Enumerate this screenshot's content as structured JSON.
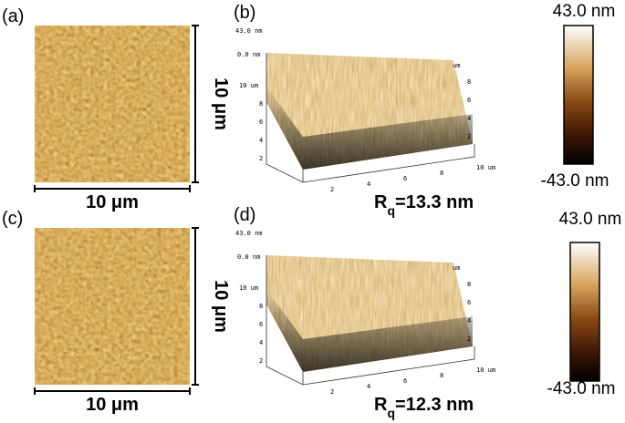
{
  "panels": [
    {
      "label": "(a)",
      "scale_x": "10 μm",
      "scale_y": "10 μm"
    },
    {
      "label": "(b)",
      "z_top": "43.0 nm",
      "z_zero": "0.0 nm",
      "left_ticks": [
        "10 um",
        "8",
        "6",
        "4",
        "2"
      ],
      "right_ticks": [
        "um",
        "8",
        "6",
        "4",
        "2"
      ],
      "bottom_ticks": [
        "2",
        "4",
        "6",
        "8",
        "10 um"
      ],
      "roughness": {
        "symbol": "R",
        "subscript": "q",
        "value_text": "=13.3 nm"
      },
      "colorbar": {
        "max": "43.0 nm",
        "min": "-43.0 nm"
      }
    },
    {
      "label": "(c)",
      "scale_x": "10 μm",
      "scale_y": "10 μm"
    },
    {
      "label": "(d)",
      "z_top": "43.0 nm",
      "z_zero": "0.0 nm",
      "left_ticks": [
        "10 um",
        "8",
        "6",
        "4",
        "2"
      ],
      "right_ticks": [
        "um",
        "8",
        "6",
        "4",
        "2"
      ],
      "bottom_ticks": [
        "2",
        "4",
        "6",
        "8",
        "10 um"
      ],
      "roughness": {
        "symbol": "R",
        "subscript": "q",
        "value_text": "=12.3 nm"
      },
      "colorbar": {
        "max": "43.0 nm",
        "min": "-43.0 nm"
      }
    }
  ]
}
